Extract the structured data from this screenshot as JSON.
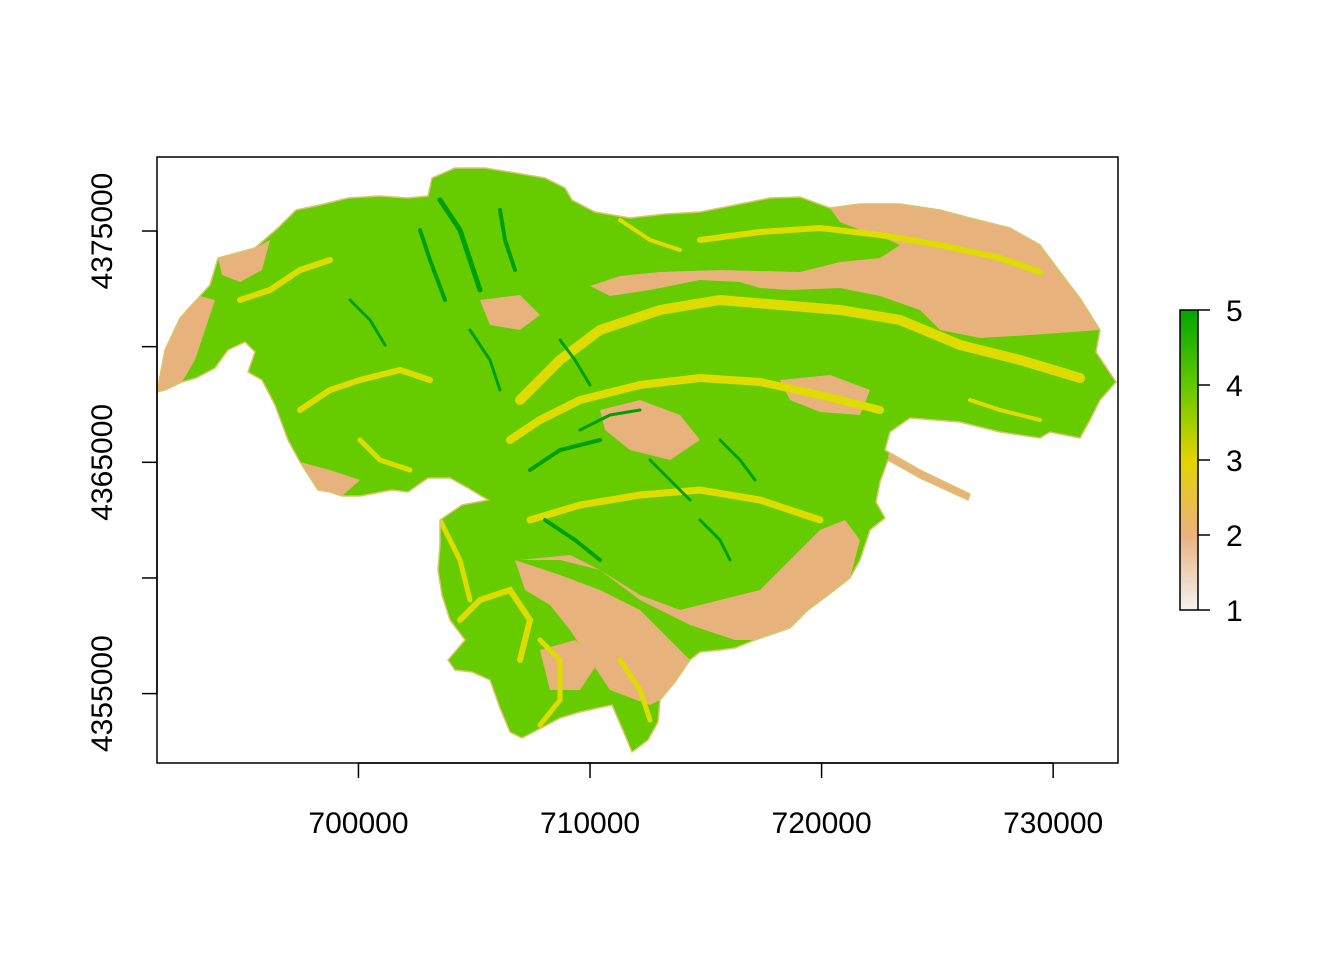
{
  "plot": {
    "x_axis": {
      "ticks": [
        700000,
        710000,
        720000,
        730000
      ],
      "labels": [
        "700000",
        "710000",
        "720000",
        "730000"
      ],
      "range": [
        691300,
        732800
      ]
    },
    "y_axis": {
      "major_ticks": [
        4355000,
        4365000,
        4375000
      ],
      "minor_ticks": [
        4360000,
        4370000
      ],
      "labels": [
        "4355000",
        "4365000",
        "4375000"
      ],
      "range": [
        4352000,
        4378200
      ]
    }
  },
  "legend": {
    "labels": [
      "1",
      "2",
      "3",
      "4",
      "5"
    ],
    "colors": [
      "#f2f2f2",
      "#ebb17d",
      "#e3d400",
      "#62c800",
      "#00a600"
    ]
  },
  "raster_colors": {
    "class2": "#e8b27c",
    "class3": "#dedc00",
    "class4": "#66cc00",
    "class5": "#00a000"
  }
}
